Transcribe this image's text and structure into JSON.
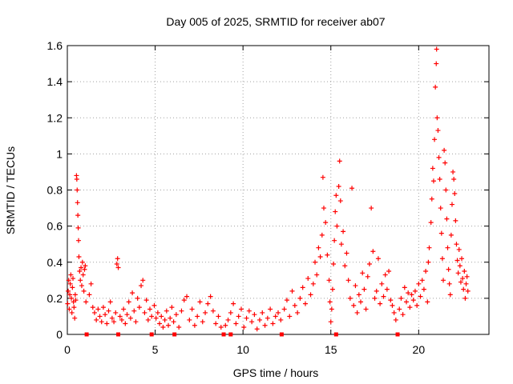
{
  "chart_data": {
    "type": "scatter",
    "title": "Day 005 of 2025, SRMTID for receiver ab07",
    "xlabel": "GPS time / hours",
    "ylabel": "SRMTID / TECUs",
    "xlim": [
      0,
      24
    ],
    "ylim": [
      0,
      1.6
    ],
    "x_ticks": [
      0,
      5,
      10,
      15,
      20
    ],
    "x_tick_labels": [
      "0",
      "5",
      "10",
      "15",
      "20"
    ],
    "y_ticks": [
      0,
      0.2,
      0.4,
      0.6,
      0.8,
      1.0,
      1.2,
      1.4,
      1.6
    ],
    "y_tick_labels": [
      "0",
      "0.2",
      "0.4",
      "0.6",
      "0.8",
      "1",
      "1.2",
      "1.4",
      "1.6"
    ],
    "grid": true,
    "marker": "+",
    "series_color": "#ff0000",
    "baseline_markers_x": [
      1.1,
      2.9,
      4.8,
      6.1,
      8.9,
      9.3,
      12.2,
      15.3,
      18.8
    ],
    "series": [
      {
        "name": "SRMTID",
        "points": [
          [
            0.02,
            0.17
          ],
          [
            0.05,
            0.24
          ],
          [
            0.08,
            0.3
          ],
          [
            0.11,
            0.14
          ],
          [
            0.14,
            0.22
          ],
          [
            0.17,
            0.28
          ],
          [
            0.2,
            0.33
          ],
          [
            0.23,
            0.2
          ],
          [
            0.26,
            0.12
          ],
          [
            0.29,
            0.26
          ],
          [
            0.32,
            0.31
          ],
          [
            0.35,
            0.18
          ],
          [
            0.38,
            0.15
          ],
          [
            0.42,
            0.09
          ],
          [
            0.45,
            0.22
          ],
          [
            0.48,
            0.19
          ],
          [
            0.52,
            0.88
          ],
          [
            0.54,
            0.86
          ],
          [
            0.56,
            0.8
          ],
          [
            0.58,
            0.73
          ],
          [
            0.6,
            0.66
          ],
          [
            0.62,
            0.59
          ],
          [
            0.64,
            0.52
          ],
          [
            0.66,
            0.43
          ],
          [
            0.7,
            0.35
          ],
          [
            0.74,
            0.3
          ],
          [
            0.78,
            0.37
          ],
          [
            0.82,
            0.27
          ],
          [
            0.86,
            0.4
          ],
          [
            0.9,
            0.33
          ],
          [
            0.94,
            0.24
          ],
          [
            0.98,
            0.36
          ],
          [
            1.02,
            0.38
          ],
          [
            1.06,
            0.18
          ],
          [
            1.25,
            0.22
          ],
          [
            1.35,
            0.28
          ],
          [
            1.45,
            0.15
          ],
          [
            1.55,
            0.12
          ],
          [
            1.65,
            0.08
          ],
          [
            1.75,
            0.14
          ],
          [
            1.85,
            0.1
          ],
          [
            1.95,
            0.07
          ],
          [
            2.05,
            0.15
          ],
          [
            2.15,
            0.11
          ],
          [
            2.25,
            0.06
          ],
          [
            2.35,
            0.13
          ],
          [
            2.45,
            0.18
          ],
          [
            2.55,
            0.09
          ],
          [
            2.65,
            0.07
          ],
          [
            2.75,
            0.12
          ],
          [
            2.82,
            0.39
          ],
          [
            2.86,
            0.42
          ],
          [
            2.9,
            0.37
          ],
          [
            3.0,
            0.1
          ],
          [
            3.1,
            0.08
          ],
          [
            3.2,
            0.14
          ],
          [
            3.3,
            0.06
          ],
          [
            3.4,
            0.11
          ],
          [
            3.5,
            0.18
          ],
          [
            3.6,
            0.09
          ],
          [
            3.7,
            0.23
          ],
          [
            3.8,
            0.13
          ],
          [
            3.9,
            0.07
          ],
          [
            4.0,
            0.2
          ],
          [
            4.1,
            0.15
          ],
          [
            4.2,
            0.27
          ],
          [
            4.3,
            0.3
          ],
          [
            4.4,
            0.12
          ],
          [
            4.5,
            0.19
          ],
          [
            4.6,
            0.08
          ],
          [
            4.7,
            0.14
          ],
          [
            4.8,
            0.1
          ],
          [
            4.95,
            0.16
          ],
          [
            5.05,
            0.09
          ],
          [
            5.15,
            0.12
          ],
          [
            5.25,
            0.06
          ],
          [
            5.35,
            0.1
          ],
          [
            5.45,
            0.04
          ],
          [
            5.55,
            0.08
          ],
          [
            5.65,
            0.13
          ],
          [
            5.75,
            0.05
          ],
          [
            5.85,
            0.09
          ],
          [
            5.95,
            0.15
          ],
          [
            6.05,
            0.07
          ],
          [
            6.2,
            0.11
          ],
          [
            6.35,
            0.04
          ],
          [
            6.5,
            0.13
          ],
          [
            6.65,
            0.19
          ],
          [
            6.8,
            0.21
          ],
          [
            6.95,
            0.08
          ],
          [
            7.1,
            0.14
          ],
          [
            7.25,
            0.05
          ],
          [
            7.4,
            0.1
          ],
          [
            7.55,
            0.18
          ],
          [
            7.7,
            0.07
          ],
          [
            7.85,
            0.12
          ],
          [
            8.0,
            0.17
          ],
          [
            8.15,
            0.21
          ],
          [
            8.3,
            0.13
          ],
          [
            8.45,
            0.06
          ],
          [
            8.6,
            0.1
          ],
          [
            8.75,
            0.04
          ],
          [
            9.0,
            0.05
          ],
          [
            9.15,
            0.08
          ],
          [
            9.3,
            0.12
          ],
          [
            9.45,
            0.17
          ],
          [
            9.6,
            0.06
          ],
          [
            9.75,
            0.1
          ],
          [
            9.9,
            0.14
          ],
          [
            10.05,
            0.04
          ],
          [
            10.2,
            0.09
          ],
          [
            10.35,
            0.13
          ],
          [
            10.5,
            0.07
          ],
          [
            10.65,
            0.11
          ],
          [
            10.8,
            0.03
          ],
          [
            10.95,
            0.08
          ],
          [
            11.1,
            0.12
          ],
          [
            11.25,
            0.05
          ],
          [
            11.4,
            0.09
          ],
          [
            11.55,
            0.14
          ],
          [
            11.7,
            0.06
          ],
          [
            11.85,
            0.1
          ],
          [
            12.0,
            0.12
          ],
          [
            12.15,
            0.08
          ],
          [
            12.35,
            0.14
          ],
          [
            12.5,
            0.19
          ],
          [
            12.65,
            0.1
          ],
          [
            12.8,
            0.24
          ],
          [
            12.95,
            0.16
          ],
          [
            13.1,
            0.12
          ],
          [
            13.25,
            0.2
          ],
          [
            13.4,
            0.26
          ],
          [
            13.55,
            0.17
          ],
          [
            13.7,
            0.31
          ],
          [
            13.85,
            0.22
          ],
          [
            14.0,
            0.28
          ],
          [
            14.1,
            0.4
          ],
          [
            14.2,
            0.33
          ],
          [
            14.3,
            0.48
          ],
          [
            14.4,
            0.43
          ],
          [
            14.5,
            0.55
          ],
          [
            14.55,
            0.87
          ],
          [
            14.6,
            0.7
          ],
          [
            14.7,
            0.62
          ],
          [
            14.8,
            0.44
          ],
          [
            14.9,
            0.3
          ],
          [
            14.95,
            0.18
          ],
          [
            15.0,
            0.07
          ],
          [
            15.05,
            0.14
          ],
          [
            15.1,
            0.25
          ],
          [
            15.15,
            0.39
          ],
          [
            15.2,
            0.52
          ],
          [
            15.25,
            0.68
          ],
          [
            15.3,
            0.77
          ],
          [
            15.35,
            0.6
          ],
          [
            15.45,
            0.82
          ],
          [
            15.5,
            0.96
          ],
          [
            15.55,
            0.74
          ],
          [
            15.6,
            0.5
          ],
          [
            15.7,
            0.57
          ],
          [
            15.8,
            0.38
          ],
          [
            15.9,
            0.45
          ],
          [
            16.0,
            0.3
          ],
          [
            16.1,
            0.2
          ],
          [
            16.2,
            0.81
          ],
          [
            16.3,
            0.16
          ],
          [
            16.4,
            0.27
          ],
          [
            16.5,
            0.12
          ],
          [
            16.6,
            0.22
          ],
          [
            16.7,
            0.18
          ],
          [
            16.8,
            0.34
          ],
          [
            16.9,
            0.25
          ],
          [
            17.0,
            0.14
          ],
          [
            17.1,
            0.32
          ],
          [
            17.2,
            0.39
          ],
          [
            17.3,
            0.7
          ],
          [
            17.4,
            0.46
          ],
          [
            17.5,
            0.2
          ],
          [
            17.6,
            0.24
          ],
          [
            17.7,
            0.42
          ],
          [
            17.8,
            0.17
          ],
          [
            17.9,
            0.28
          ],
          [
            18.0,
            0.21
          ],
          [
            18.1,
            0.33
          ],
          [
            18.2,
            0.25
          ],
          [
            18.3,
            0.35
          ],
          [
            18.4,
            0.19
          ],
          [
            18.5,
            0.16
          ],
          [
            18.6,
            0.12
          ],
          [
            18.7,
            0.08
          ],
          [
            18.9,
            0.14
          ],
          [
            19.0,
            0.2
          ],
          [
            19.1,
            0.11
          ],
          [
            19.2,
            0.26
          ],
          [
            19.3,
            0.18
          ],
          [
            19.4,
            0.23
          ],
          [
            19.5,
            0.15
          ],
          [
            19.6,
            0.22
          ],
          [
            19.7,
            0.19
          ],
          [
            19.8,
            0.24
          ],
          [
            19.9,
            0.16
          ],
          [
            20.0,
            0.28
          ],
          [
            20.1,
            0.21
          ],
          [
            20.2,
            0.3
          ],
          [
            20.3,
            0.25
          ],
          [
            20.4,
            0.35
          ],
          [
            20.5,
            0.18
          ],
          [
            20.55,
            0.4
          ],
          [
            20.6,
            0.48
          ],
          [
            20.7,
            0.62
          ],
          [
            20.75,
            0.75
          ],
          [
            20.8,
            0.92
          ],
          [
            20.85,
            0.85
          ],
          [
            20.9,
            1.08
          ],
          [
            20.95,
            1.37
          ],
          [
            21.0,
            1.5
          ],
          [
            21.02,
            1.58
          ],
          [
            21.05,
            1.2
          ],
          [
            21.1,
            1.13
          ],
          [
            21.15,
            0.98
          ],
          [
            21.2,
            0.86
          ],
          [
            21.25,
            0.7
          ],
          [
            21.3,
            0.56
          ],
          [
            21.35,
            0.42
          ],
          [
            21.4,
            0.3
          ],
          [
            21.45,
            1.02
          ],
          [
            21.5,
            0.95
          ],
          [
            21.55,
            0.8
          ],
          [
            21.6,
            0.64
          ],
          [
            21.65,
            0.48
          ],
          [
            21.7,
            0.36
          ],
          [
            21.75,
            0.28
          ],
          [
            21.8,
            0.22
          ],
          [
            21.85,
            0.55
          ],
          [
            21.9,
            0.72
          ],
          [
            21.95,
            0.9
          ],
          [
            22.0,
            0.86
          ],
          [
            22.05,
            0.78
          ],
          [
            22.1,
            0.63
          ],
          [
            22.15,
            0.5
          ],
          [
            22.2,
            0.41
          ],
          [
            22.25,
            0.34
          ],
          [
            22.3,
            0.47
          ],
          [
            22.35,
            0.38
          ],
          [
            22.4,
            0.29
          ],
          [
            22.45,
            0.42
          ],
          [
            22.5,
            0.31
          ],
          [
            22.55,
            0.25
          ],
          [
            22.6,
            0.35
          ],
          [
            22.65,
            0.2
          ],
          [
            22.7,
            0.28
          ],
          [
            22.75,
            0.32
          ],
          [
            22.8,
            0.24
          ]
        ]
      }
    ]
  }
}
